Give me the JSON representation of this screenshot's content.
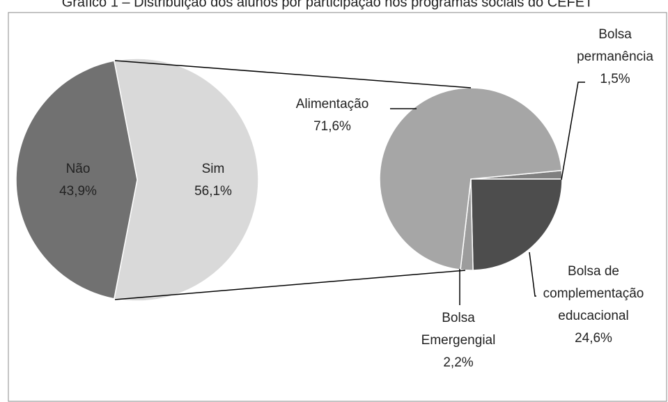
{
  "chart_data": [
    {
      "type": "pie",
      "title": "Gráfico 1 – Distribuição dos alunos por participação nos programas sociais do CEFET",
      "categories": [
        "Não",
        "Sim"
      ],
      "values": [
        43.9,
        56.1
      ],
      "value_labels": [
        "43,9%",
        "56,1%"
      ],
      "colors": [
        "#717171",
        "#d9d9d9"
      ]
    },
    {
      "type": "pie",
      "categories": [
        "Bolsa permanência",
        "Bolsa de complementação educacional",
        "Bolsa Emergengial",
        "Alimentação"
      ],
      "values": [
        1.5,
        24.6,
        2.2,
        71.6
      ],
      "value_labels": [
        "1,5%",
        "24,6%",
        "2,2%",
        "71,6%"
      ],
      "colors": [
        "#808080",
        "#4d4d4d",
        "#9c9c9c",
        "#a6a6a6"
      ]
    }
  ]
}
